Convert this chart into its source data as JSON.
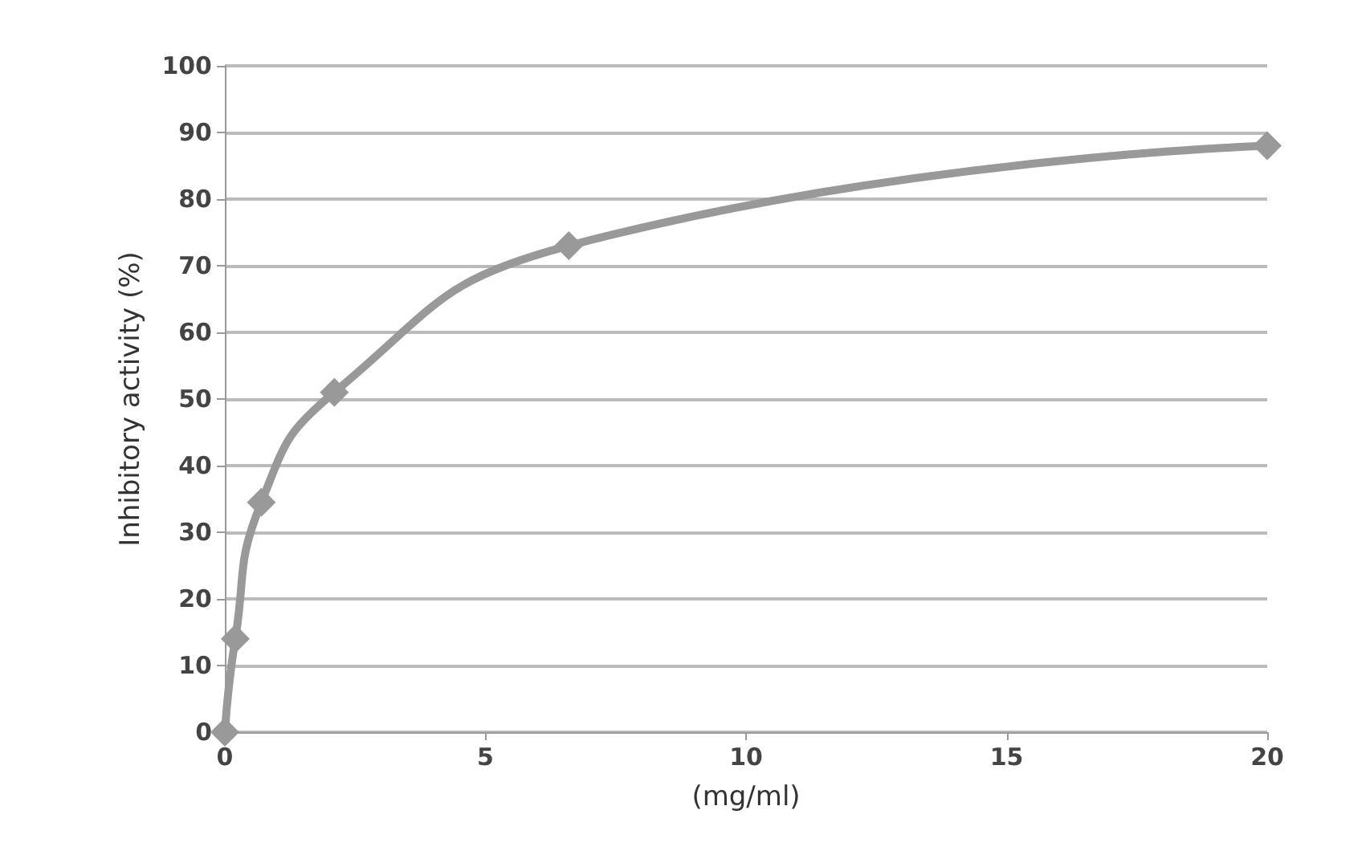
{
  "chart_data": {
    "type": "line",
    "xlabel": "(mg/ml)",
    "ylabel": "Inhibitory activity (%)",
    "x": [
      0,
      0.2,
      0.7,
      2.1,
      6.6,
      20
    ],
    "series": [
      {
        "color": "#999999",
        "values": [
          0,
          14,
          34.5,
          51,
          73,
          88
        ]
      }
    ],
    "xlim": [
      0,
      20
    ],
    "xticks": [
      0,
      5,
      10,
      15,
      20
    ],
    "ylim": [
      0,
      100
    ],
    "yticks": [
      0,
      10,
      20,
      30,
      40,
      50,
      60,
      70,
      80,
      90,
      100
    ],
    "grid": "y",
    "marker": "diamond",
    "line_style": "solid"
  }
}
